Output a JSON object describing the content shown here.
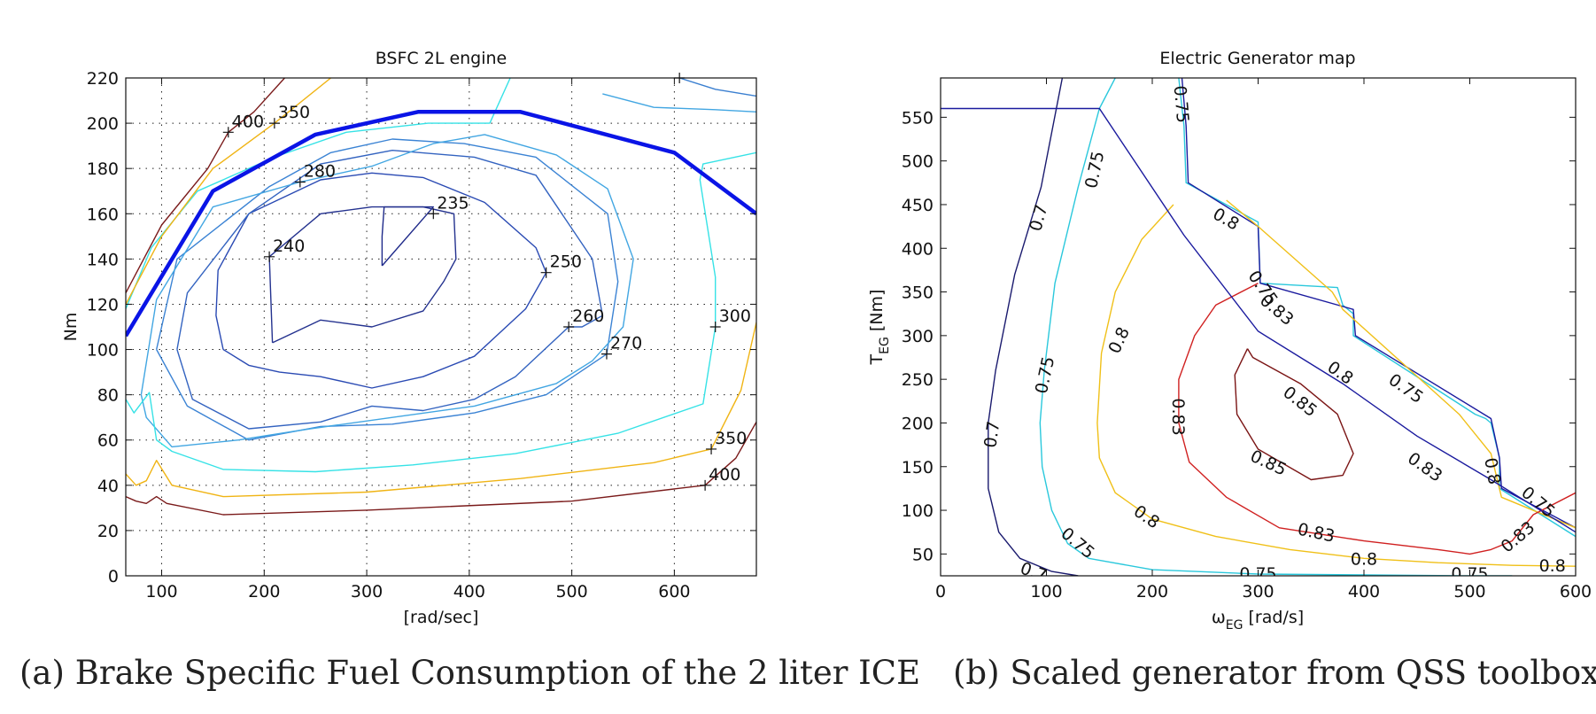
{
  "chart_data": [
    {
      "type": "contour",
      "title": "BSFC 2L engine",
      "xlabel": "[rad/sec]",
      "ylabel": "Nm",
      "xlim": [
        65,
        680
      ],
      "ylim": [
        0,
        220
      ],
      "xticks": [
        100,
        200,
        300,
        400,
        500,
        600
      ],
      "yticks": [
        0,
        20,
        40,
        60,
        80,
        100,
        120,
        140,
        160,
        180,
        200,
        220
      ],
      "grid": true,
      "caption": "(a) Brake Specific Fuel Consumption of the 2 liter ICE",
      "max_torque_curve": {
        "color": "#0a14e6",
        "x": [
          65,
          150,
          250,
          350,
          450,
          600,
          680
        ],
        "y": [
          106,
          170,
          195,
          205,
          205,
          187,
          160
        ]
      },
      "contours": [
        {
          "level": 235,
          "color": "#1f2a8a",
          "label": "235",
          "label_x": 365,
          "label_y": 160,
          "x": [
            315,
            365,
            317,
            315,
            315
          ],
          "y": [
            137,
            163,
            163,
            150,
            137
          ]
        },
        {
          "level": 240,
          "color": "#24328f",
          "label": "240",
          "label_x": 205,
          "label_y": 141,
          "x": [
            208,
            205,
            255,
            305,
            355,
            385,
            387,
            375,
            355,
            305,
            255,
            208
          ],
          "y": [
            103,
            141,
            160,
            163,
            163,
            160,
            140,
            130,
            117,
            110,
            113,
            103
          ]
        },
        {
          "level": 250,
          "color": "#2a4ab3",
          "label": "250",
          "label_x": 475,
          "label_y": 134,
          "x": [
            160,
            153,
            155,
            185,
            255,
            305,
            355,
            415,
            465,
            475,
            455,
            405,
            355,
            305,
            255,
            215,
            185,
            160
          ],
          "y": [
            100,
            115,
            135,
            160,
            175,
            178,
            176,
            165,
            145,
            134,
            118,
            97,
            88,
            83,
            88,
            90,
            93,
            100
          ]
        },
        {
          "level": 260,
          "color": "#3363c0",
          "label": "260",
          "label_x": 497,
          "label_y": 110,
          "x": [
            115,
            125,
            185,
            255,
            325,
            405,
            465,
            520,
            530,
            510,
            497,
            445,
            405,
            355,
            305,
            255,
            185,
            130,
            115
          ],
          "y": [
            100,
            125,
            160,
            182,
            188,
            185,
            177,
            140,
            115,
            110,
            110,
            88,
            78,
            73,
            75,
            68,
            65,
            78,
            100
          ]
        },
        {
          "level": 270,
          "color": "#3b83d4",
          "label": "270",
          "label_x": 534,
          "label_y": 98,
          "x": [
            95,
            115,
            205,
            265,
            325,
            395,
            465,
            535,
            545,
            534,
            475,
            405,
            325,
            255,
            185,
            125,
            95
          ],
          "y": [
            100,
            140,
            172,
            187,
            193,
            191,
            185,
            160,
            130,
            98,
            80,
            72,
            67,
            66,
            60,
            75,
            100
          ]
        },
        {
          "level": 280,
          "color": "#42a6e2",
          "label": "280",
          "label_x": 235,
          "label_y": 174,
          "x": [
            80,
            95,
            150,
            235,
            305,
            365,
            415,
            485,
            535,
            560,
            550,
            520,
            485,
            405,
            325,
            245,
            175,
            110,
            85,
            80
          ],
          "y": [
            80,
            122,
            163,
            174,
            181,
            191,
            195,
            186,
            171,
            140,
            110,
            95,
            85,
            75,
            70,
            65,
            60,
            57,
            70,
            80
          ]
        },
        {
          "level": 300,
          "color": "#36e2e6",
          "label": "300",
          "label_x": 640,
          "label_y": 110,
          "x": [
            65,
            90,
            135,
            210,
            280,
            360,
            420,
            440
          ],
          "y": [
            118,
            145,
            170,
            185,
            196,
            200,
            200,
            220
          ]
        },
        {
          "level": 300,
          "color": "#36e2e6",
          "label": "",
          "label_x": null,
          "label_y": null,
          "x": [
            65,
            73,
            88,
            95,
            110,
            160,
            250,
            345,
            445,
            545,
            628,
            640,
            640,
            625,
            628,
            680
          ],
          "y": [
            78,
            72,
            81,
            60,
            55,
            47,
            46,
            49,
            54,
            63,
            76,
            110,
            132,
            175,
            182,
            187
          ]
        },
        {
          "level": 350,
          "color": "#f0b414",
          "label": "350",
          "label_x": 210,
          "label_y": 200,
          "x": [
            65,
            100,
            150,
            210,
            265
          ],
          "y": [
            120,
            150,
            180,
            200,
            220
          ]
        },
        {
          "level": 350,
          "color": "#f0b414",
          "label": "350",
          "label_x": 636,
          "label_y": 56,
          "x": [
            65,
            75,
            85,
            95,
            110,
            160,
            300,
            450,
            580,
            636,
            665,
            680
          ],
          "y": [
            45,
            40,
            42,
            51,
            40,
            35,
            37,
            43,
            50,
            56,
            82,
            112
          ]
        },
        {
          "level": 400,
          "color": "#7a1a1a",
          "label": "400",
          "label_x": 165,
          "label_y": 196,
          "x": [
            65,
            100,
            145,
            165,
            190,
            220
          ],
          "y": [
            125,
            155,
            180,
            196,
            205,
            220
          ]
        },
        {
          "level": 400,
          "color": "#7a1a1a",
          "label": "400",
          "label_x": 630,
          "label_y": 40,
          "x": [
            65,
            75,
            85,
            95,
            105,
            160,
            300,
            500,
            630,
            660,
            680
          ],
          "y": [
            35,
            33,
            32,
            35,
            32,
            27,
            29,
            33,
            40,
            52,
            68
          ]
        },
        {
          "level": 0,
          "color": "#3a7fd0",
          "label": "",
          "label_x": null,
          "label_y": null,
          "x": [
            605,
            640,
            680
          ],
          "y": [
            220,
            215,
            212
          ]
        },
        {
          "level": 0,
          "color": "#42a6e2",
          "label": "",
          "label_x": null,
          "label_y": null,
          "x": [
            530,
            580,
            640,
            680
          ],
          "y": [
            213,
            207,
            206,
            205
          ]
        }
      ],
      "markers": [
        [
          165,
          196
        ],
        [
          210,
          200
        ],
        [
          235,
          174
        ],
        [
          205,
          141
        ],
        [
          365,
          160
        ],
        [
          475,
          134
        ],
        [
          497,
          110
        ],
        [
          534,
          98
        ],
        [
          640,
          110
        ],
        [
          636,
          56
        ],
        [
          630,
          40
        ],
        [
          605,
          220
        ]
      ]
    },
    {
      "type": "contour",
      "title": "Electric Generator map",
      "xlabel": "ω",
      "xlabel_sub": "EG",
      "xlabel_unit": " [rad/s]",
      "ylabel": "T",
      "ylabel_sub": "EG",
      "ylabel_unit": " [Nm]",
      "xlim": [
        0,
        600
      ],
      "ylim": [
        25,
        595
      ],
      "xticks": [
        0,
        100,
        200,
        300,
        400,
        500,
        600
      ],
      "yticks": [
        50,
        100,
        150,
        200,
        250,
        300,
        350,
        400,
        450,
        500,
        550
      ],
      "grid": false,
      "caption": "(b) Scaled generator from QSS toolbox",
      "envelope": {
        "color": "#1a1a9e",
        "x": [
          0,
          150,
          230,
          300,
          380,
          450,
          520,
          600
        ],
        "y": [
          560,
          560,
          415,
          305,
          245,
          185,
          135,
          75
        ]
      },
      "contours": [
        {
          "level": 0.7,
          "color": "#1a1a6e",
          "x": [
            115,
            95,
            70,
            52,
            45,
            45,
            55,
            75,
            105,
            130
          ],
          "y": [
            595,
            470,
            370,
            260,
            200,
            125,
            75,
            45,
            30,
            25
          ]
        },
        {
          "level": 0.75,
          "color": "#2ac8dc",
          "x": [
            165,
            150,
            130,
            108,
            98,
            94,
            96,
            105,
            120,
            140,
            200,
            300,
            400,
            500,
            540
          ],
          "y": [
            595,
            560,
            470,
            360,
            260,
            200,
            150,
            100,
            62,
            45,
            32,
            27,
            26,
            25,
            25
          ]
        },
        {
          "level": 0.75,
          "color": "#2ac8dc",
          "x": [
            225,
            230,
            232,
            300,
            302,
            375,
            380,
            390,
            390,
            505,
            515,
            520,
            528,
            528,
            600
          ],
          "y": [
            595,
            540,
            475,
            430,
            360,
            355,
            335,
            325,
            300,
            210,
            205,
            200,
            160,
            125,
            70
          ]
        },
        {
          "level": 0.75,
          "color": "#1a1a9e",
          "x": [
            228,
            232,
            234,
            300,
            302,
            390,
            392,
            520,
            528,
            530,
            600
          ],
          "y": [
            595,
            540,
            475,
            425,
            360,
            330,
            300,
            205,
            160,
            125,
            80
          ]
        },
        {
          "level": 0.8,
          "color": "#f0c018",
          "x": [
            270,
            300,
            370,
            380,
            490,
            520,
            530,
            600
          ],
          "y": [
            455,
            425,
            350,
            330,
            210,
            165,
            115,
            80
          ]
        },
        {
          "level": 0.8,
          "color": "#f0c018",
          "x": [
            220,
            190,
            165,
            152,
            148,
            150,
            165,
            200,
            260,
            330,
            400,
            470,
            540,
            600
          ],
          "y": [
            450,
            410,
            350,
            280,
            200,
            160,
            120,
            90,
            70,
            55,
            45,
            40,
            37,
            36
          ]
        },
        {
          "level": 0.83,
          "color": "#d02020",
          "x": [
            300,
            260,
            240,
            225,
            225,
            235,
            270,
            320,
            400,
            470,
            500,
            520,
            540,
            560,
            600
          ],
          "y": [
            360,
            335,
            300,
            250,
            200,
            155,
            115,
            80,
            65,
            55,
            50,
            55,
            65,
            95,
            120
          ]
        },
        {
          "level": 0.85,
          "color": "#7a1414",
          "x": [
            290,
            278,
            280,
            300,
            350,
            380,
            390,
            375,
            340,
            295,
            290
          ],
          "y": [
            285,
            255,
            210,
            170,
            135,
            140,
            165,
            210,
            245,
            275,
            285
          ]
        }
      ],
      "labels": [
        {
          "text": "0.75",
          "x": 228,
          "y": 565,
          "rotate": 85,
          "color": "#111"
        },
        {
          "text": "0.75",
          "x": 145,
          "y": 490,
          "rotate": -78,
          "color": "#111"
        },
        {
          "text": "0.7",
          "x": 92,
          "y": 435,
          "rotate": -75,
          "color": "#111"
        },
        {
          "text": "0.8",
          "x": 270,
          "y": 434,
          "rotate": 30,
          "color": "#111"
        },
        {
          "text": "0.75",
          "x": 305,
          "y": 355,
          "rotate": 55,
          "color": "#111"
        },
        {
          "text": "0.83",
          "x": 318,
          "y": 330,
          "rotate": 40,
          "color": "#111"
        },
        {
          "text": "0.8",
          "x": 168,
          "y": 295,
          "rotate": -65,
          "color": "#111"
        },
        {
          "text": "0.75",
          "x": 98,
          "y": 255,
          "rotate": -78,
          "color": "#111"
        },
        {
          "text": "0.8",
          "x": 378,
          "y": 258,
          "rotate": 35,
          "color": "#111"
        },
        {
          "text": "0.75",
          "x": 440,
          "y": 240,
          "rotate": 35,
          "color": "#111"
        },
        {
          "text": "0.85",
          "x": 340,
          "y": 225,
          "rotate": 38,
          "color": "#111"
        },
        {
          "text": "0.7",
          "x": 48,
          "y": 187,
          "rotate": -82,
          "color": "#111"
        },
        {
          "text": "0.83",
          "x": 225,
          "y": 207,
          "rotate": 90,
          "color": "#111"
        },
        {
          "text": "0.85",
          "x": 310,
          "y": 155,
          "rotate": 25,
          "color": "#111"
        },
        {
          "text": "0.83",
          "x": 458,
          "y": 150,
          "rotate": 35,
          "color": "#111"
        },
        {
          "text": "0.8",
          "x": 522,
          "y": 145,
          "rotate": 80,
          "color": "#111"
        },
        {
          "text": "0.75",
          "x": 565,
          "y": 110,
          "rotate": 40,
          "color": "#111"
        },
        {
          "text": "0.8",
          "x": 195,
          "y": 93,
          "rotate": 35,
          "color": "#111"
        },
        {
          "text": "0.83",
          "x": 355,
          "y": 75,
          "rotate": 12,
          "color": "#111"
        },
        {
          "text": "0.83",
          "x": 545,
          "y": 70,
          "rotate": -40,
          "color": "#111"
        },
        {
          "text": "0.75",
          "x": 130,
          "y": 63,
          "rotate": 40,
          "color": "#111"
        },
        {
          "text": "0.8",
          "x": 400,
          "y": 45,
          "rotate": 0,
          "color": "#111"
        },
        {
          "text": "0.8",
          "x": 578,
          "y": 37,
          "rotate": 0,
          "color": "#111"
        },
        {
          "text": "0.7",
          "x": 88,
          "y": 30,
          "rotate": 20,
          "color": "#111"
        },
        {
          "text": "0.75",
          "x": 300,
          "y": 28,
          "rotate": 0,
          "color": "#111"
        },
        {
          "text": "0.75",
          "x": 500,
          "y": 28,
          "rotate": 0,
          "color": "#111"
        }
      ]
    }
  ],
  "captions": {
    "a": "(a) Brake Specific Fuel Consumption of the 2 liter ICE",
    "b": "(b) Scaled generator from QSS toolbox"
  }
}
